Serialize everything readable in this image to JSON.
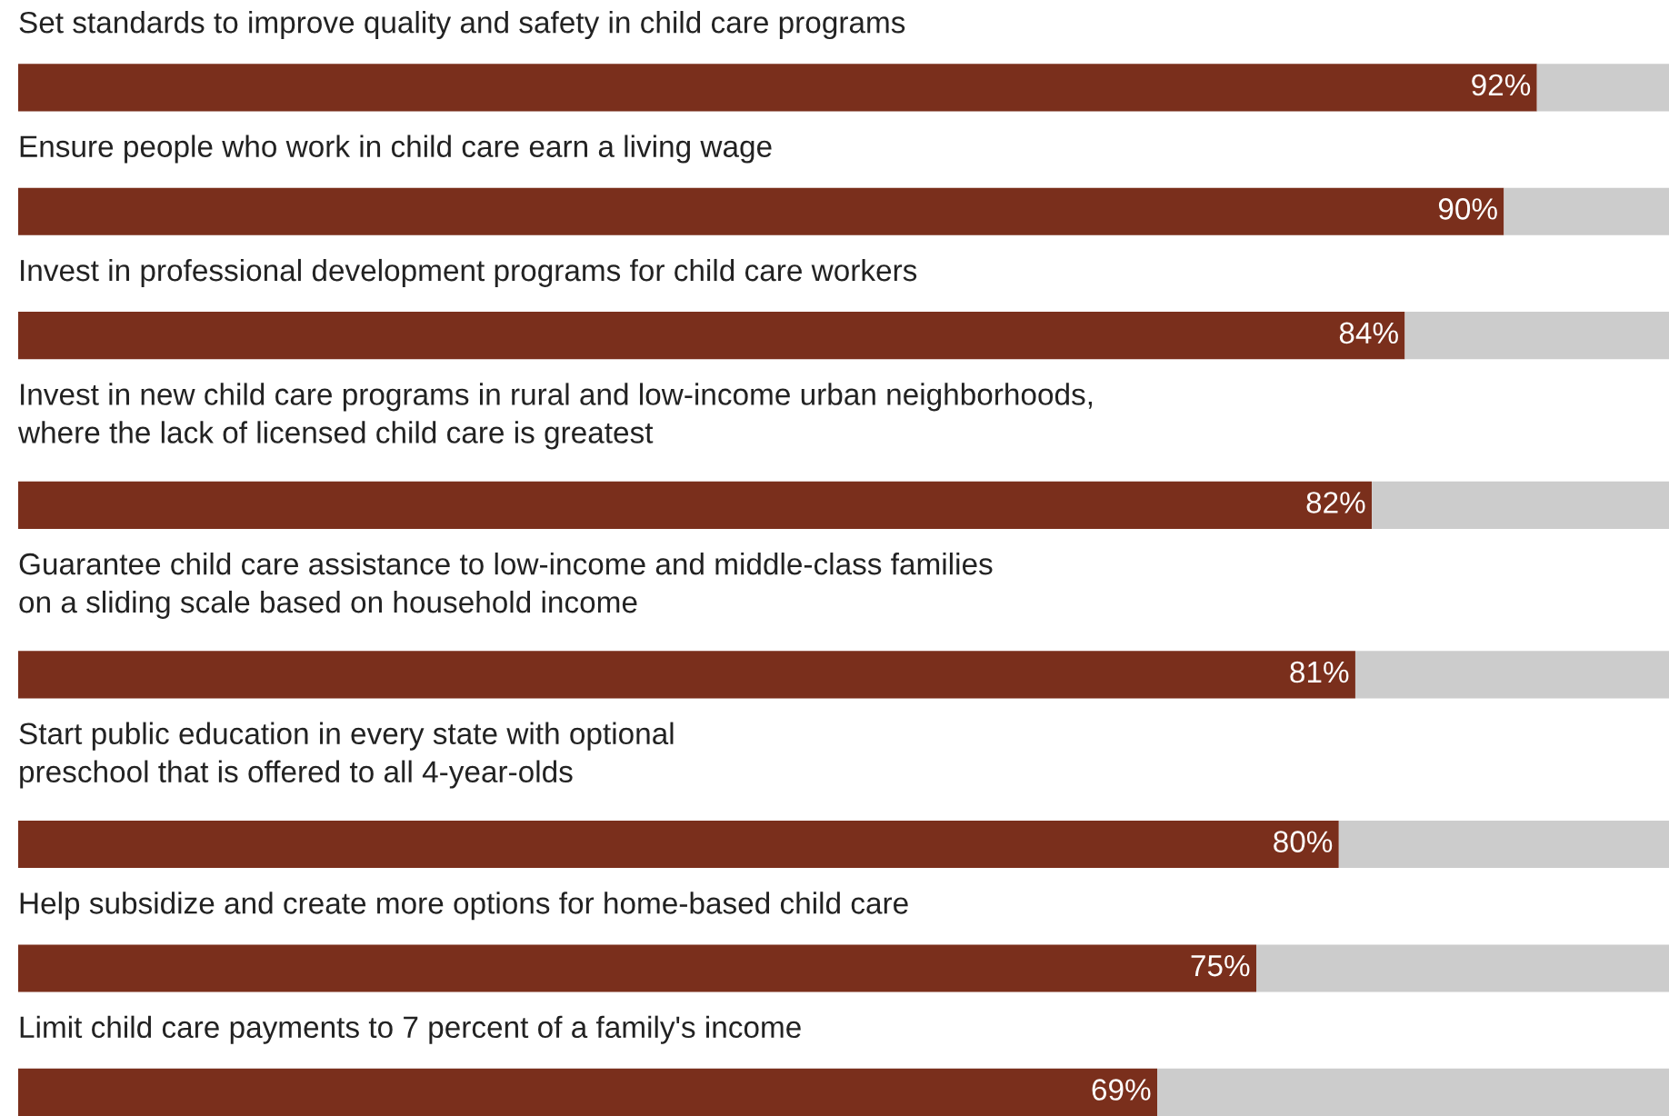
{
  "chart_data": {
    "type": "bar",
    "orientation": "horizontal",
    "stacked": true,
    "categories": [
      "Set standards to improve quality and safety in child care programs",
      "Ensure people who work in child care earn a living wage",
      "Invest in professional development programs for child care workers",
      "Invest in new child care programs in rural and low-income urban neighborhoods,\nwhere the lack of licensed child care is greatest",
      "Guarantee child care assistance to low-income and middle-class families\non a sliding scale based on household income",
      "Start public education in every state with optional\npreschool that is offered to all 4-year-olds",
      "Help subsidize and create more options for home-based child care",
      "Limit child care payments to 7 percent of a family's income"
    ],
    "series": [
      {
        "color": "#7a2f1c",
        "values": [
          92,
          90,
          84,
          82,
          81,
          80,
          75,
          69
        ],
        "value_labels": [
          "92%",
          "90%",
          "84%",
          "82%",
          "81%",
          "80%",
          "75%",
          "69%"
        ]
      },
      {
        "color": "#cccccc",
        "values": [
          8,
          10,
          16,
          18,
          19,
          20,
          25,
          31
        ],
        "value_labels": [
          null,
          null,
          null,
          null,
          null,
          null,
          null,
          null
        ]
      }
    ]
  }
}
